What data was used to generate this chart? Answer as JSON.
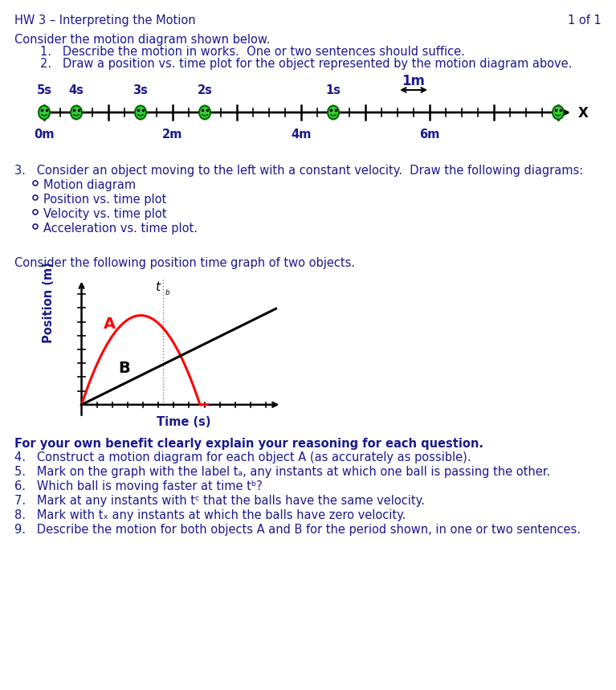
{
  "title_left": "HW 3 – Interpreting the Motion",
  "title_right": "1 of 1",
  "text_color": "#1a1a8c",
  "bg_color": "#ffffff",
  "intro_text": "Consider the motion diagram shown below.",
  "item1": "1.   Describe the motion in works.  One or two sentences should suffice.",
  "item2": "2.   Draw a position vs. time plot for the object represented by the motion diagram above.",
  "scale_label": "1m",
  "time_labels": [
    "5s",
    "4s",
    "3s",
    "2s",
    "1s"
  ],
  "pos_labels": [
    "0m",
    "2m",
    "4m",
    "6m"
  ],
  "q3_text": "3.   Consider an object moving to the left with a constant velocity.  Draw the following diagrams:",
  "q3_bullets": [
    "Motion diagram",
    "Position vs. time plot",
    "Velocity vs. time plot",
    "Acceleration vs. time plot."
  ],
  "consider_text": "Consider the following position time graph of two objects.",
  "ylabel_graph": "Position (m)",
  "xlabel_graph": "Time (s)",
  "bold_text": "For your own benefit clearly explain your reasoning for each question.",
  "questions": [
    "4.   Construct a motion diagram for each object A (as accurately as possible).",
    "5.   Mark on the graph with the label tₐ, any instants at which one ball is passing the other.",
    "6.   Which ball is moving faster at time tᵇ?",
    "7.   Mark at any instants with tᶜ that the balls have the same velocity.",
    "8.   Mark with tₓ any instants at which the balls have zero velocity.",
    "9.   Describe the motion for both objects A and B for the period shown, in one or two sentences."
  ]
}
